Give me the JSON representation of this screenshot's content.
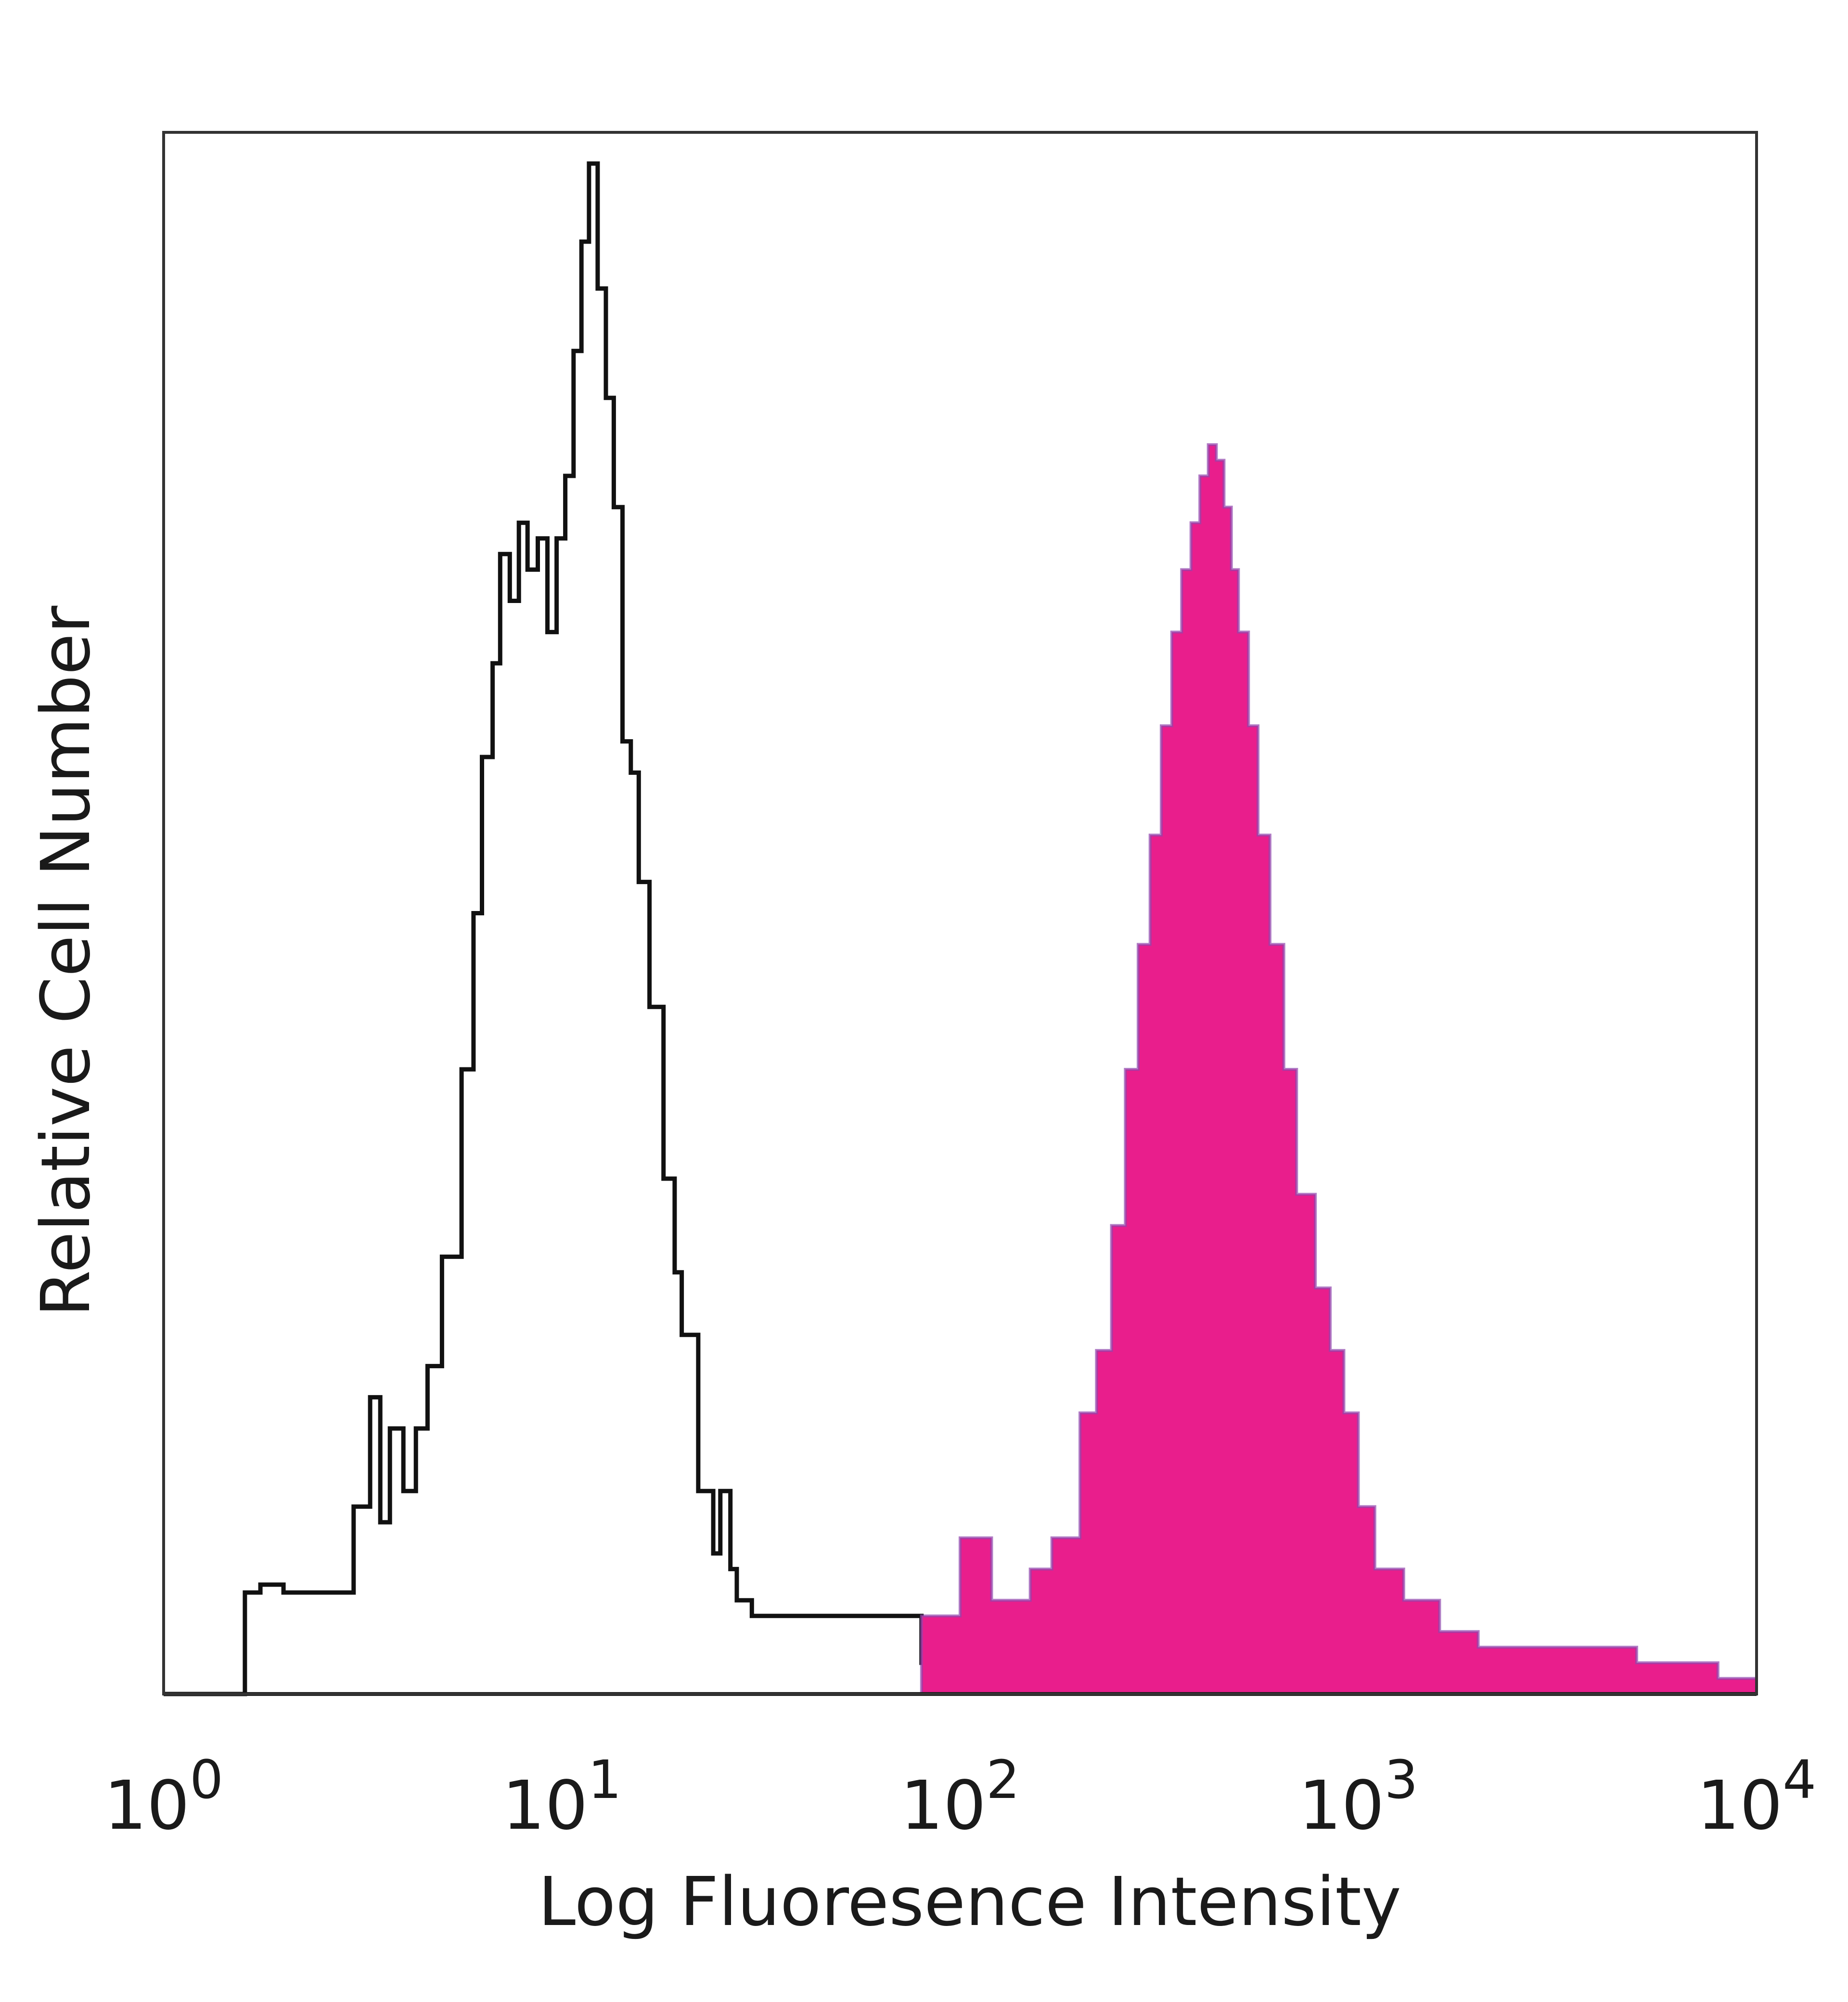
{
  "chart_data": {
    "type": "area",
    "title": "",
    "xlabel": "Log Fluoresence Intensity",
    "ylabel": "Relative Cell Number",
    "x_scale": "log",
    "xlim": [
      1,
      10000
    ],
    "ylim": [
      0,
      100
    ],
    "grid": false,
    "legend": "none",
    "x_ticks": [
      {
        "value": 1,
        "base": "10",
        "exp": "0"
      },
      {
        "value": 10,
        "base": "10",
        "exp": "1"
      },
      {
        "value": 100,
        "base": "10",
        "exp": "2"
      },
      {
        "value": 1000,
        "base": "10",
        "exp": "3"
      },
      {
        "value": 10000,
        "base": "10",
        "exp": "4"
      }
    ],
    "series": [
      {
        "style": "outline",
        "color": "#111111",
        "x": [
          1.0,
          1.6,
          1.75,
          2.0,
          2.6,
          3.0,
          3.3,
          3.5,
          3.7,
          4.0,
          4.3,
          4.6,
          5.0,
          5.6,
          6.0,
          6.3,
          6.7,
          7.0,
          7.4,
          7.8,
          8.2,
          8.7,
          9.2,
          9.7,
          10.2,
          10.7,
          11.2,
          11.7,
          12.3,
          12.9,
          13.5,
          14.2,
          14.9,
          15.6,
          16.6,
          18.0,
          19.2,
          20.0,
          22.0,
          24.0,
          25.0,
          26.5,
          27.5,
          30.0,
          40.0,
          60.0,
          80.0
        ],
        "values": [
          0,
          6.5,
          7.0,
          6.5,
          6.5,
          12,
          19,
          11,
          17,
          13,
          17,
          21,
          28,
          40,
          50,
          60,
          66,
          73,
          70,
          75,
          72,
          74,
          68,
          74,
          78,
          86,
          93,
          98,
          90,
          83,
          76,
          61,
          59,
          52,
          44,
          33,
          27,
          23,
          13,
          9,
          13,
          8,
          6,
          5,
          5,
          5,
          2
        ],
        "x_end": 100
      },
      {
        "style": "filled",
        "color": "#e91e8c",
        "x": [
          80,
          100,
          120,
          150,
          170,
          200,
          220,
          240,
          260,
          280,
          300,
          320,
          340,
          360,
          380,
          400,
          420,
          440,
          460,
          480,
          500,
          530,
          560,
          600,
          650,
          700,
          780,
          850,
          920,
          1000,
          1100,
          1300,
          1600,
          2000,
          3000,
          5000,
          8000
        ],
        "values": [
          5,
          10,
          6,
          8,
          10,
          18,
          22,
          30,
          40,
          48,
          55,
          62,
          68,
          72,
          75,
          78,
          80,
          79,
          76,
          72,
          68,
          62,
          55,
          48,
          40,
          32,
          26,
          22,
          18,
          12,
          8,
          6,
          4,
          3,
          3,
          2,
          1
        ],
        "x_end": 10000
      }
    ]
  }
}
